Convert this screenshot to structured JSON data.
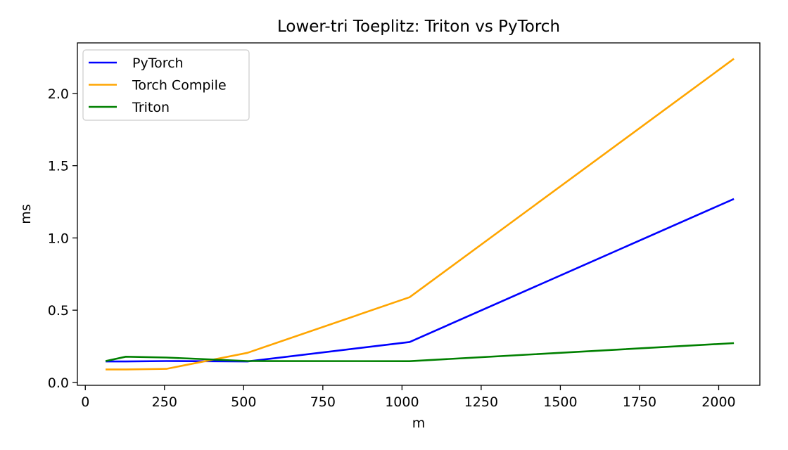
{
  "chart_data": {
    "type": "line",
    "title": "Lower-tri Toeplitz: Triton vs PyTorch",
    "xlabel": "m",
    "ylabel": "ms",
    "xlim": [
      -25,
      2130
    ],
    "ylim": [
      -0.02,
      2.35
    ],
    "xticks": [
      0,
      250,
      500,
      750,
      1000,
      1250,
      1500,
      1750,
      2000
    ],
    "yticks": [
      0.0,
      0.5,
      1.0,
      1.5,
      2.0
    ],
    "ytick_labels": [
      "0.0",
      "0.5",
      "1.0",
      "1.5",
      "2.0"
    ],
    "grid": false,
    "legend_position": "top-left",
    "x": [
      64,
      128,
      256,
      512,
      1024,
      2048
    ],
    "series": [
      {
        "name": "PyTorch",
        "color": "#0000ff",
        "values": [
          0.145,
          0.145,
          0.148,
          0.145,
          0.28,
          1.27
        ]
      },
      {
        "name": "Torch Compile",
        "color": "#ffa500",
        "values": [
          0.09,
          0.09,
          0.094,
          0.205,
          0.59,
          2.24
        ]
      },
      {
        "name": "Triton",
        "color": "#008000",
        "values": [
          0.148,
          0.178,
          0.172,
          0.148,
          0.147,
          0.272
        ]
      }
    ]
  }
}
